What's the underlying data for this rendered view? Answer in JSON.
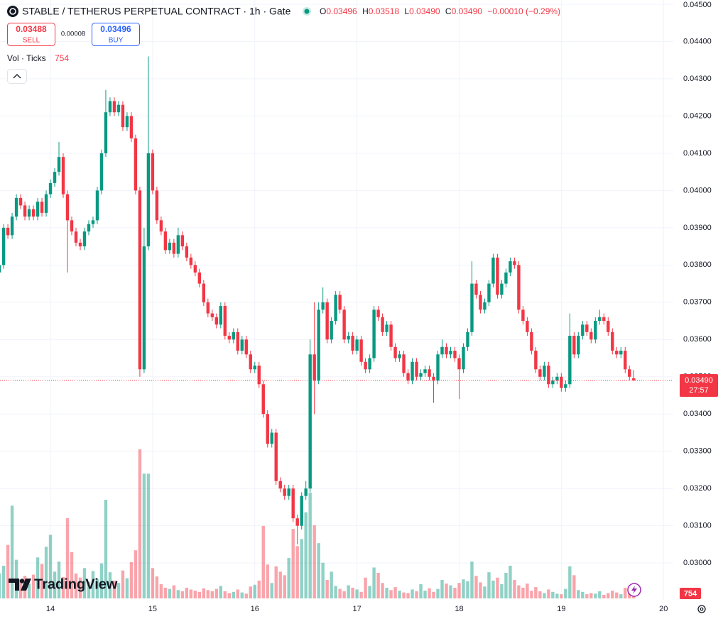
{
  "header": {
    "title": "STABLE / TETHERUS PERPETUAL CONTRACT · 1h · Gate",
    "ohlc": [
      {
        "label": "O",
        "value": "0.03496"
      },
      {
        "label": "H",
        "value": "0.03518"
      },
      {
        "label": "L",
        "value": "0.03490"
      },
      {
        "label": "C",
        "value": "0.03490"
      }
    ],
    "change": "−0.00010 (−0.29%)"
  },
  "trade": {
    "sell_price": "0.03488",
    "sell": "SELL",
    "spread": "0.00008",
    "buy_price": "0.03496",
    "buy": "BUY"
  },
  "indicator": {
    "name": "Vol · Ticks"
  },
  "logo": "TradingView",
  "chart_data": {
    "type": "candlestick",
    "up_color": "#089981",
    "down_color": "#f23645",
    "grid": true,
    "xlim": [
      -11.85,
      146.3
    ],
    "xticks": [
      {
        "value": 0,
        "label": "14"
      },
      {
        "value": 24,
        "label": "15"
      },
      {
        "value": 48,
        "label": "16"
      },
      {
        "value": 72,
        "label": "17"
      },
      {
        "value": 96,
        "label": "18"
      },
      {
        "value": 120,
        "label": "19"
      },
      {
        "value": 144,
        "label": "20"
      }
    ],
    "ylim": [
      0.02905,
      0.045
    ],
    "yticks": [
      {
        "value": 0.03,
        "label": "0.03000"
      },
      {
        "value": 0.031,
        "label": "0.03100"
      },
      {
        "value": 0.032,
        "label": "0.03200"
      },
      {
        "value": 0.033,
        "label": "0.03300"
      },
      {
        "value": 0.034,
        "label": "0.03400"
      },
      {
        "value": 0.035,
        "label": "0.03500"
      },
      {
        "value": 0.036,
        "label": "0.03600"
      },
      {
        "value": 0.037,
        "label": "0.03700"
      },
      {
        "value": 0.038,
        "label": "0.03800"
      },
      {
        "value": 0.039,
        "label": "0.03900"
      },
      {
        "value": 0.04,
        "label": "0.04000"
      },
      {
        "value": 0.041,
        "label": "0.04100"
      },
      {
        "value": 0.042,
        "label": "0.04200"
      },
      {
        "value": 0.043,
        "label": "0.04300"
      },
      {
        "value": 0.044,
        "label": "0.04400"
      },
      {
        "value": 0.045,
        "label": "0.04500"
      }
    ],
    "volume_ylim": [
      0,
      100000
    ],
    "last_price": {
      "value": 0.0349,
      "label": "0.03490"
    },
    "countdown": "27:57",
    "x": [
      -12,
      -11,
      -10,
      -9,
      -8,
      -7,
      -6,
      -5,
      -4,
      -3,
      -2,
      -1,
      0,
      1,
      2,
      3,
      4,
      5,
      6,
      7,
      8,
      9,
      10,
      11,
      12,
      13,
      14,
      15,
      16,
      17,
      18,
      19,
      20,
      21,
      22,
      23,
      24,
      25,
      26,
      27,
      28,
      29,
      30,
      31,
      32,
      33,
      34,
      35,
      36,
      37,
      38,
      39,
      40,
      41,
      42,
      43,
      44,
      45,
      46,
      47,
      48,
      49,
      50,
      51,
      52,
      53,
      54,
      55,
      56,
      57,
      58,
      59,
      60,
      61,
      62,
      63,
      64,
      65,
      66,
      67,
      68,
      69,
      70,
      71,
      72,
      73,
      74,
      75,
      76,
      77,
      78,
      79,
      80,
      81,
      82,
      83,
      84,
      85,
      86,
      87,
      88,
      89,
      90,
      91,
      92,
      93,
      94,
      95,
      96,
      97,
      98,
      99,
      100,
      101,
      102,
      103,
      104,
      105,
      106,
      107,
      108,
      109,
      110,
      111,
      112,
      113,
      114,
      115,
      116,
      117,
      118,
      119,
      120,
      121,
      122,
      123,
      124,
      125,
      126,
      127,
      128,
      129,
      130,
      131,
      132,
      133,
      134,
      135,
      136,
      137
    ],
    "open": [
      0.0378,
      0.038,
      0.039,
      0.0388,
      0.0393,
      0.0398,
      0.0396,
      0.0393,
      0.0395,
      0.0393,
      0.0397,
      0.0394,
      0.0399,
      0.0402,
      0.0405,
      0.0409,
      0.0399,
      0.0392,
      0.0389,
      0.0386,
      0.0385,
      0.0389,
      0.0391,
      0.0392,
      0.04,
      0.041,
      0.0421,
      0.0424,
      0.0421,
      0.0423,
      0.0417,
      0.042,
      0.0414,
      0.04,
      0.0352,
      0.0385,
      0.041,
      0.04,
      0.0392,
      0.0389,
      0.0384,
      0.0386,
      0.0383,
      0.0388,
      0.0385,
      0.0382,
      0.038,
      0.0378,
      0.0375,
      0.037,
      0.0367,
      0.0366,
      0.0364,
      0.0369,
      0.0361,
      0.036,
      0.0362,
      0.0357,
      0.036,
      0.0356,
      0.0352,
      0.0353,
      0.0348,
      0.034,
      0.0332,
      0.0335,
      0.0322,
      0.032,
      0.0318,
      0.032,
      0.0312,
      0.031,
      0.0318,
      0.032,
      0.0356,
      0.0349,
      0.0368,
      0.037,
      0.036,
      0.0365,
      0.0372,
      0.0368,
      0.036,
      0.0361,
      0.0357,
      0.036,
      0.0354,
      0.0352,
      0.0355,
      0.0368,
      0.0366,
      0.0362,
      0.0364,
      0.0358,
      0.0355,
      0.0356,
      0.0351,
      0.0349,
      0.0354,
      0.035,
      0.0351,
      0.0352,
      0.035,
      0.0349,
      0.0356,
      0.0358,
      0.0356,
      0.0357,
      0.0355,
      0.0352,
      0.0358,
      0.0362,
      0.0375,
      0.0372,
      0.0368,
      0.037,
      0.0375,
      0.0382,
      0.0372,
      0.0375,
      0.0378,
      0.0381,
      0.038,
      0.0368,
      0.0365,
      0.0362,
      0.0357,
      0.0352,
      0.035,
      0.0353,
      0.0348,
      0.0349,
      0.035,
      0.0347,
      0.0348,
      0.0361,
      0.0356,
      0.0361,
      0.0364,
      0.0362,
      0.036,
      0.0365,
      0.0366,
      0.0365,
      0.0362,
      0.0357,
      0.0356,
      0.0357,
      0.0352,
      0.03496
    ],
    "high": [
      0.0381,
      0.0391,
      0.0391,
      0.0394,
      0.0399,
      0.0399,
      0.0397,
      0.0396,
      0.0396,
      0.0398,
      0.0398,
      0.04,
      0.0403,
      0.0406,
      0.0413,
      0.041,
      0.04,
      0.0393,
      0.039,
      0.0387,
      0.039,
      0.0392,
      0.0393,
      0.0401,
      0.0411,
      0.0427,
      0.0425,
      0.0425,
      0.0424,
      0.0424,
      0.0421,
      0.0421,
      0.0415,
      0.0401,
      0.039,
      0.0436,
      0.0411,
      0.0401,
      0.0393,
      0.039,
      0.0387,
      0.0387,
      0.039,
      0.0389,
      0.0386,
      0.0383,
      0.0381,
      0.0379,
      0.0376,
      0.0371,
      0.0368,
      0.0367,
      0.037,
      0.037,
      0.0362,
      0.0363,
      0.0363,
      0.0361,
      0.0361,
      0.0357,
      0.0354,
      0.0354,
      0.0349,
      0.0341,
      0.0336,
      0.0336,
      0.0323,
      0.0321,
      0.0321,
      0.0321,
      0.0313,
      0.0319,
      0.0322,
      0.036,
      0.037,
      0.037,
      0.0374,
      0.0371,
      0.0366,
      0.0373,
      0.0373,
      0.0369,
      0.0362,
      0.0362,
      0.0361,
      0.0361,
      0.0355,
      0.0356,
      0.0369,
      0.0369,
      0.0367,
      0.0365,
      0.0365,
      0.0359,
      0.0357,
      0.0357,
      0.0352,
      0.0355,
      0.0355,
      0.0352,
      0.0353,
      0.0353,
      0.0351,
      0.0357,
      0.036,
      0.0359,
      0.0358,
      0.0358,
      0.0356,
      0.0359,
      0.0363,
      0.0381,
      0.0376,
      0.0373,
      0.0371,
      0.0376,
      0.0383,
      0.0383,
      0.0376,
      0.0379,
      0.0382,
      0.0382,
      0.0381,
      0.0369,
      0.0366,
      0.0363,
      0.0358,
      0.0353,
      0.0354,
      0.0354,
      0.035,
      0.0351,
      0.0351,
      0.0349,
      0.0367,
      0.0362,
      0.0362,
      0.0365,
      0.0365,
      0.0363,
      0.0366,
      0.0368,
      0.0367,
      0.0366,
      0.0363,
      0.0358,
      0.0358,
      0.0358,
      0.0353,
      0.03518
    ],
    "low": [
      0.0377,
      0.0379,
      0.0387,
      0.0387,
      0.0392,
      0.0395,
      0.0392,
      0.0392,
      0.0392,
      0.0392,
      0.0393,
      0.0393,
      0.0398,
      0.0401,
      0.0404,
      0.0398,
      0.0378,
      0.0388,
      0.0385,
      0.0384,
      0.0384,
      0.0388,
      0.039,
      0.0391,
      0.0399,
      0.0409,
      0.042,
      0.042,
      0.042,
      0.0416,
      0.0416,
      0.0413,
      0.0399,
      0.035,
      0.0351,
      0.0384,
      0.0399,
      0.0391,
      0.0388,
      0.0383,
      0.0383,
      0.0382,
      0.0382,
      0.0384,
      0.0381,
      0.0379,
      0.0377,
      0.0374,
      0.0369,
      0.0366,
      0.0365,
      0.0363,
      0.0363,
      0.036,
      0.0359,
      0.0359,
      0.0356,
      0.0356,
      0.0355,
      0.0351,
      0.0351,
      0.0347,
      0.0339,
      0.0331,
      0.0331,
      0.0321,
      0.0319,
      0.0317,
      0.0317,
      0.0311,
      0.0305,
      0.0309,
      0.0317,
      0.0319,
      0.034,
      0.0348,
      0.0367,
      0.0359,
      0.0359,
      0.0364,
      0.0367,
      0.0359,
      0.0359,
      0.0356,
      0.0356,
      0.0353,
      0.0351,
      0.0351,
      0.0354,
      0.0365,
      0.0361,
      0.0361,
      0.0357,
      0.0354,
      0.0354,
      0.035,
      0.0348,
      0.0348,
      0.0349,
      0.0349,
      0.035,
      0.0349,
      0.0343,
      0.0348,
      0.0355,
      0.0355,
      0.0355,
      0.0354,
      0.0344,
      0.0351,
      0.0357,
      0.0361,
      0.0371,
      0.0367,
      0.0367,
      0.0369,
      0.0374,
      0.0371,
      0.0371,
      0.0374,
      0.0377,
      0.0379,
      0.0367,
      0.0364,
      0.0361,
      0.0356,
      0.0351,
      0.0349,
      0.0349,
      0.0347,
      0.0347,
      0.0348,
      0.0346,
      0.0346,
      0.0347,
      0.0355,
      0.0355,
      0.036,
      0.0361,
      0.0359,
      0.0359,
      0.0364,
      0.0364,
      0.0361,
      0.0356,
      0.0355,
      0.0355,
      0.0351,
      0.0349,
      0.0349
    ],
    "close": [
      0.038,
      0.039,
      0.0388,
      0.0393,
      0.0398,
      0.0396,
      0.0393,
      0.0395,
      0.0393,
      0.0397,
      0.0394,
      0.0399,
      0.0402,
      0.0405,
      0.0409,
      0.0399,
      0.0392,
      0.0389,
      0.0386,
      0.0385,
      0.0389,
      0.0391,
      0.0392,
      0.04,
      0.041,
      0.0421,
      0.0424,
      0.0421,
      0.0423,
      0.0417,
      0.042,
      0.0414,
      0.04,
      0.0352,
      0.0385,
      0.041,
      0.04,
      0.0392,
      0.0389,
      0.0384,
      0.0386,
      0.0383,
      0.0388,
      0.0385,
      0.0382,
      0.038,
      0.0378,
      0.0375,
      0.037,
      0.0367,
      0.0366,
      0.0364,
      0.0369,
      0.0361,
      0.036,
      0.0362,
      0.0357,
      0.036,
      0.0356,
      0.0352,
      0.0353,
      0.0348,
      0.034,
      0.0332,
      0.0335,
      0.0322,
      0.032,
      0.0318,
      0.032,
      0.0312,
      0.031,
      0.0318,
      0.032,
      0.0356,
      0.0349,
      0.0368,
      0.037,
      0.036,
      0.0365,
      0.0372,
      0.0368,
      0.036,
      0.0361,
      0.0357,
      0.036,
      0.0354,
      0.0352,
      0.0355,
      0.0368,
      0.0366,
      0.0362,
      0.0364,
      0.0358,
      0.0355,
      0.0356,
      0.0351,
      0.0349,
      0.0354,
      0.035,
      0.0351,
      0.0352,
      0.035,
      0.0349,
      0.0356,
      0.0358,
      0.0356,
      0.0357,
      0.0355,
      0.0352,
      0.0358,
      0.0362,
      0.0375,
      0.0372,
      0.0368,
      0.037,
      0.0375,
      0.0382,
      0.0372,
      0.0375,
      0.0378,
      0.0381,
      0.038,
      0.0368,
      0.0365,
      0.0362,
      0.0357,
      0.0352,
      0.035,
      0.0353,
      0.0348,
      0.0349,
      0.035,
      0.0347,
      0.0348,
      0.0361,
      0.0356,
      0.0361,
      0.0364,
      0.0362,
      0.036,
      0.0365,
      0.0366,
      0.0365,
      0.0362,
      0.0357,
      0.0356,
      0.0357,
      0.0352,
      0.035,
      0.0349
    ],
    "volume": [
      4200,
      5500,
      9000,
      15600,
      6500,
      3200,
      3800,
      2500,
      4000,
      6900,
      5800,
      8700,
      10700,
      4500,
      6200,
      3600,
      13500,
      7800,
      4200,
      3500,
      5100,
      2800,
      4600,
      3200,
      5900,
      16600,
      4400,
      3000,
      2600,
      4700,
      3400,
      6100,
      8100,
      25100,
      21000,
      21000,
      5100,
      3700,
      2400,
      1800,
      1600,
      2200,
      1400,
      1200,
      1800,
      1500,
      1300,
      1100,
      1700,
      1400,
      1200,
      1600,
      2100,
      1200,
      900,
      1100,
      1500,
      1000,
      800,
      2000,
      2300,
      3000,
      12200,
      5700,
      2600,
      5400,
      4500,
      3900,
      6800,
      11700,
      8800,
      10000,
      14500,
      17800,
      12300,
      9300,
      6000,
      3100,
      4500,
      2100,
      1600,
      1200,
      2200,
      1800,
      1500,
      1100,
      3500,
      2100,
      5200,
      4300,
      2600,
      1800,
      1400,
      1900,
      1300,
      1000,
      900,
      1500,
      1200,
      2400,
      1300,
      1700,
      1100,
      1600,
      3100,
      2500,
      2200,
      1800,
      2600,
      3200,
      2900,
      6200,
      3800,
      2700,
      2000,
      4400,
      3000,
      3500,
      2400,
      4300,
      5500,
      3100,
      2200,
      1800,
      2500,
      1300,
      1900,
      1200,
      900,
      1500,
      1100,
      800,
      700,
      1600,
      5400,
      3900,
      1400,
      1100,
      700,
      900,
      800,
      1200,
      600,
      900,
      1300,
      1000,
      700,
      1800,
      1200,
      754
    ]
  }
}
